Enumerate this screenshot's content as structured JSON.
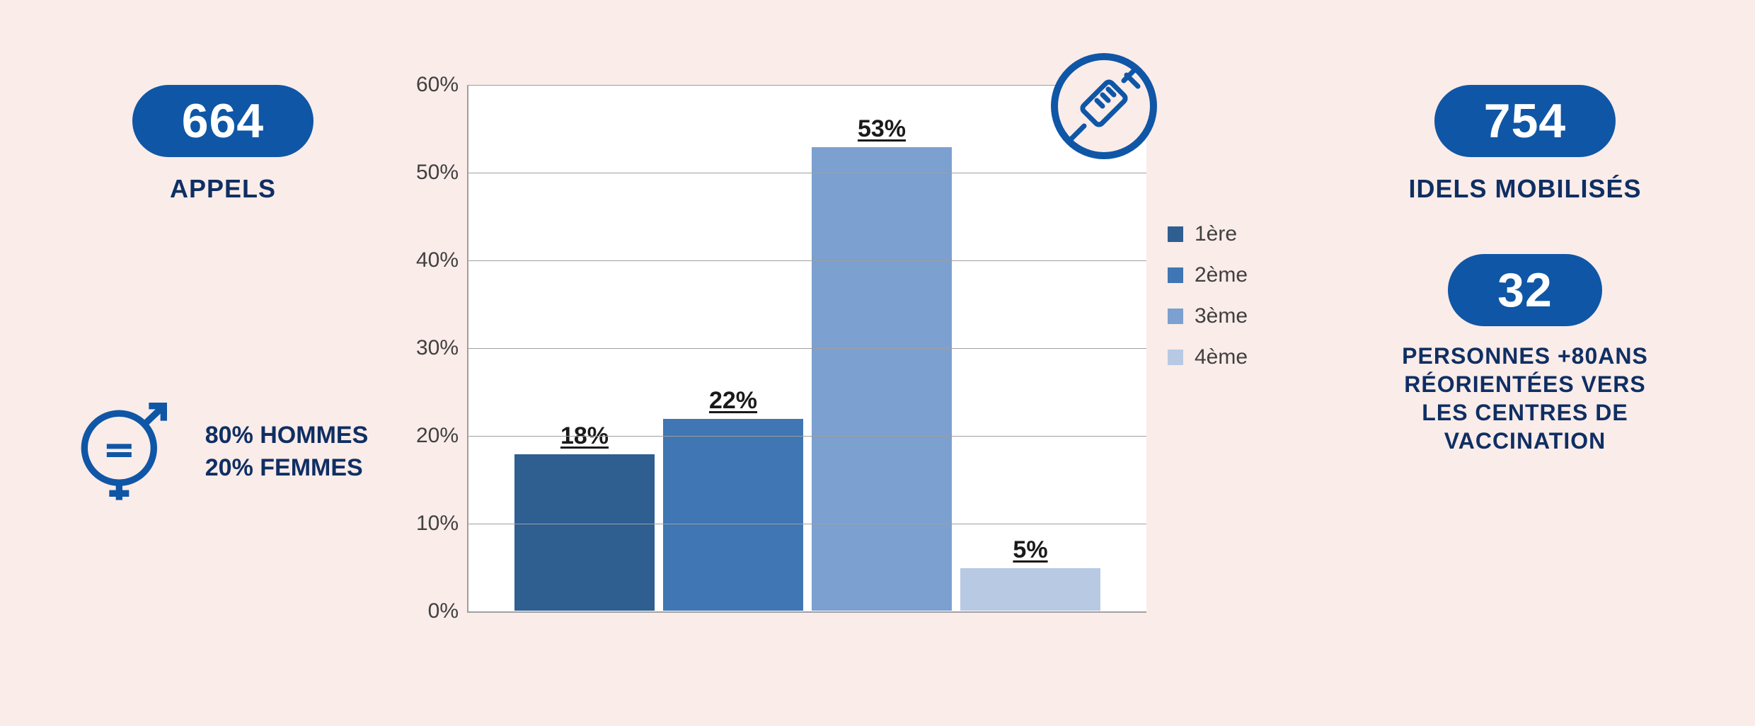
{
  "left": {
    "stat1": {
      "value": "664",
      "label": "APPELS"
    },
    "gender": {
      "line1": "80% HOMMES",
      "line2": "20% FEMMES"
    }
  },
  "right": {
    "stat1": {
      "value": "754",
      "label": "IDELS MOBILISÉS"
    },
    "stat2": {
      "value": "32",
      "label": "PERSONNES +80ANS\nRÉORIENTÉES VERS\nLES CENTRES DE\nVACCINATION"
    }
  },
  "chart": {
    "type": "bar",
    "ylim": [
      0,
      60
    ],
    "ytick_step": 10,
    "ytick_labels": [
      "0%",
      "10%",
      "20%",
      "30%",
      "40%",
      "50%",
      "60%"
    ],
    "categories": [
      "1ère",
      "2ème",
      "3ème",
      "4ème"
    ],
    "values": [
      18,
      22,
      53,
      5
    ],
    "value_labels": [
      "18%",
      "22%",
      "53%",
      "5%"
    ],
    "bar_colors": [
      "#2f5e91",
      "#3f76b3",
      "#7ca0cf",
      "#b7c9e3"
    ],
    "grid_color": "#9f9f9f",
    "background_color": "#ffffff",
    "label_fontsize": 30,
    "value_fontsize": 34,
    "accent_color": "#0f56a6",
    "pill_bg": "#0f56a6",
    "pill_fg": "#ffffff",
    "text_color": "#0f2f63"
  }
}
